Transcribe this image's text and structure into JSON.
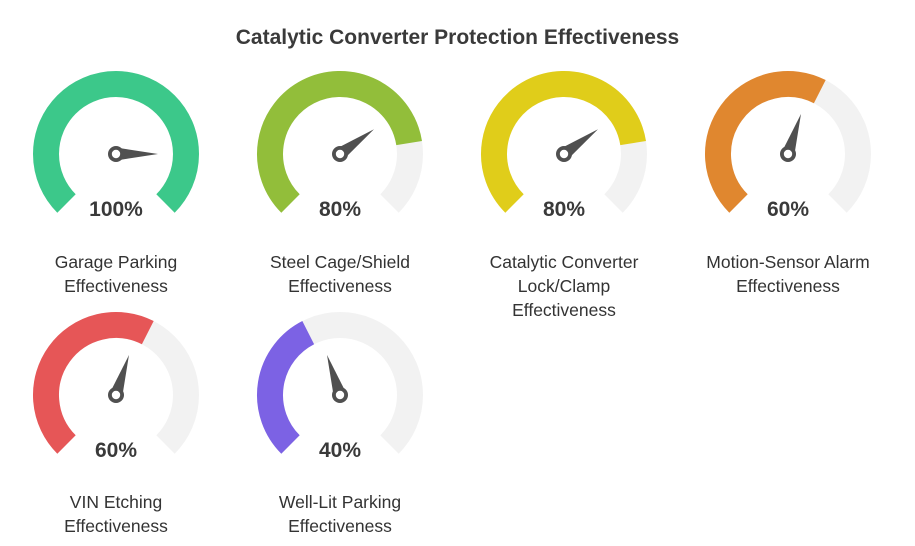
{
  "chart_data": {
    "type": "gauge",
    "title": "Catalytic Converter Protection Effectiveness",
    "scale": [
      0,
      100
    ],
    "unit": "%",
    "gauges": [
      {
        "value": 100,
        "value_label": "100%",
        "label_lines": [
          "Garage Parking",
          "Effectiveness"
        ],
        "color": "#3cc88a"
      },
      {
        "value": 80,
        "value_label": "80%",
        "label_lines": [
          "Steel Cage/Shield",
          "Effectiveness"
        ],
        "color": "#92be3a"
      },
      {
        "value": 80,
        "value_label": "80%",
        "label_lines": [
          "Catalytic Converter",
          "Lock/Clamp",
          "Effectiveness"
        ],
        "color": "#e0cd1a"
      },
      {
        "value": 60,
        "value_label": "60%",
        "label_lines": [
          "Motion-Sensor Alarm",
          "Effectiveness"
        ],
        "color": "#e0872f"
      },
      {
        "value": 60,
        "value_label": "60%",
        "label_lines": [
          "VIN Etching",
          "Effectiveness"
        ],
        "color": "#e65657"
      },
      {
        "value": 40,
        "value_label": "40%",
        "label_lines": [
          "Well-Lit Parking",
          "Effectiveness"
        ],
        "color": "#7c62e4"
      }
    ],
    "track_color": "#f2f2f2",
    "needle_color": "#505050"
  }
}
